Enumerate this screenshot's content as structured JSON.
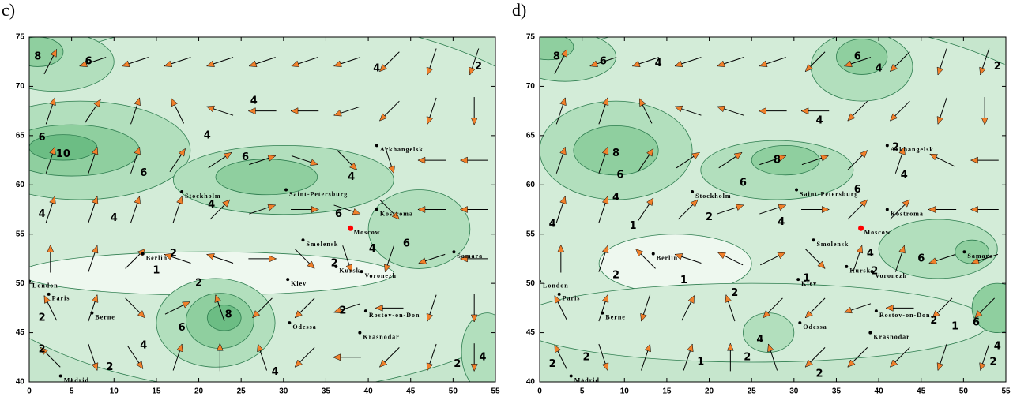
{
  "level_colors": [
    {
      "level": 0,
      "color": "#eef8ef"
    },
    {
      "level": 1,
      "color": "#f6fbf6"
    },
    {
      "level": 2,
      "color": "#d3ecd8"
    },
    {
      "level": 4,
      "color": "#b2dfbd"
    },
    {
      "level": 6,
      "color": "#8fcf9f"
    },
    {
      "level": 8,
      "color": "#6cbd84"
    },
    {
      "level": 10,
      "color": "#4aa86a"
    }
  ],
  "cities": [
    {
      "name": "Arkhangelsk",
      "lon": 41,
      "lat": 64,
      "color": "#000000"
    },
    {
      "name": "Stockholm",
      "lon": 18,
      "lat": 59.3,
      "color": "#000000"
    },
    {
      "name": "Saint-Petersburg",
      "lon": 30.3,
      "lat": 59.5,
      "color": "#000000"
    },
    {
      "name": "Kostroma",
      "lon": 41,
      "lat": 57.5,
      "color": "#000000"
    },
    {
      "name": "Moscow",
      "lon": 37.9,
      "lat": 55.6,
      "color": "#ff0000"
    },
    {
      "name": "Smolensk",
      "lon": 32.3,
      "lat": 54.4,
      "color": "#000000"
    },
    {
      "name": "Berlin",
      "lon": 13.4,
      "lat": 53,
      "color": "#000000"
    },
    {
      "name": "Kursk",
      "lon": 36.2,
      "lat": 51.7,
      "color": "#000000"
    },
    {
      "name": "Voronezh",
      "lon": 39.2,
      "lat": 51.2,
      "color": "#000000"
    },
    {
      "name": "Kiev",
      "lon": 30.5,
      "lat": 50.4,
      "color": "#000000"
    },
    {
      "name": "London",
      "lon": 0,
      "lat": 50.2,
      "color": "#000000"
    },
    {
      "name": "Paris",
      "lon": 2.3,
      "lat": 48.9,
      "color": "#000000"
    },
    {
      "name": "Berne",
      "lon": 7.4,
      "lat": 47,
      "color": "#000000"
    },
    {
      "name": "Odessa",
      "lon": 30.7,
      "lat": 46,
      "color": "#000000"
    },
    {
      "name": "Rostov-on-Don",
      "lon": 39.7,
      "lat": 47.2,
      "color": "#000000"
    },
    {
      "name": "Krasnodar",
      "lon": 39,
      "lat": 45,
      "color": "#000000"
    },
    {
      "name": "Madrid",
      "lon": 3.7,
      "lat": 40.6,
      "color": "#000000"
    },
    {
      "name": "Samara",
      "lon": 50.1,
      "lat": 53.2,
      "color": "#000000"
    }
  ],
  "panels": [
    {
      "label": "c)",
      "xlim": [
        0,
        55
      ],
      "ylim": [
        40,
        75
      ],
      "xticks": [
        0,
        5,
        10,
        15,
        20,
        25,
        30,
        35,
        40,
        45,
        50,
        55
      ],
      "yticks": [
        40,
        45,
        50,
        55,
        60,
        65,
        70,
        75
      ],
      "shading": [
        {
          "lon": 28,
          "lat": 58,
          "rx": 40,
          "ry": 19,
          "level": 2
        },
        {
          "lon": 6,
          "lat": 63.5,
          "rx": 13,
          "ry": 5,
          "level": 4
        },
        {
          "lon": 5,
          "lat": 63.5,
          "rx": 8,
          "ry": 2.6,
          "level": 6
        },
        {
          "lon": 4,
          "lat": 63.8,
          "rx": 4,
          "ry": 1.3,
          "level": 8
        },
        {
          "lon": 30,
          "lat": 60.5,
          "rx": 13,
          "ry": 3.5,
          "level": 4
        },
        {
          "lon": 28,
          "lat": 60.8,
          "rx": 6,
          "ry": 1.8,
          "level": 6
        },
        {
          "lon": 3,
          "lat": 72.5,
          "rx": 7,
          "ry": 3,
          "level": 4
        },
        {
          "lon": 1,
          "lat": 73.5,
          "rx": 3,
          "ry": 1.5,
          "level": 6
        },
        {
          "lon": 46,
          "lat": 55.5,
          "rx": 6,
          "ry": 4,
          "level": 4
        },
        {
          "lon": 21,
          "lat": 51,
          "rx": 22,
          "ry": 2.2,
          "level": 0
        },
        {
          "lon": 22,
          "lat": 46,
          "rx": 7,
          "ry": 4.5,
          "level": 4
        },
        {
          "lon": 22.5,
          "lat": 46.2,
          "rx": 4,
          "ry": 2.8,
          "level": 6
        },
        {
          "lon": 23,
          "lat": 46.5,
          "rx": 2,
          "ry": 1.3,
          "level": 8
        },
        {
          "lon": 54,
          "lat": 43,
          "rx": 3,
          "ry": 4,
          "level": 4
        }
      ],
      "contour_labels": [
        {
          "value": 8,
          "lon": 1,
          "lat": 73
        },
        {
          "value": 6,
          "lon": 7,
          "lat": 72.5
        },
        {
          "value": 4,
          "lon": 41,
          "lat": 71.8
        },
        {
          "value": 2,
          "lon": 53,
          "lat": 72
        },
        {
          "value": 10,
          "lon": 4,
          "lat": 63.1
        },
        {
          "value": 6,
          "lon": 1.5,
          "lat": 64.8
        },
        {
          "value": 6,
          "lon": 13.5,
          "lat": 61.2
        },
        {
          "value": 4,
          "lon": 21,
          "lat": 65
        },
        {
          "value": 6,
          "lon": 25.5,
          "lat": 62.8
        },
        {
          "value": 4,
          "lon": 38,
          "lat": 60.8
        },
        {
          "value": 6,
          "lon": 36.5,
          "lat": 57
        },
        {
          "value": 4,
          "lon": 21.5,
          "lat": 58
        },
        {
          "value": 4,
          "lon": 10,
          "lat": 56.6
        },
        {
          "value": 4,
          "lon": 1.5,
          "lat": 57
        },
        {
          "value": 4,
          "lon": 40.5,
          "lat": 53.5
        },
        {
          "value": 6,
          "lon": 44.5,
          "lat": 54
        },
        {
          "value": 4,
          "lon": 26.5,
          "lat": 68.5
        },
        {
          "value": 2,
          "lon": 17,
          "lat": 53
        },
        {
          "value": 1,
          "lon": 15,
          "lat": 51.3
        },
        {
          "value": 2,
          "lon": 36,
          "lat": 52
        },
        {
          "value": 2,
          "lon": 20,
          "lat": 50
        },
        {
          "value": 6,
          "lon": 18,
          "lat": 45.5
        },
        {
          "value": 8,
          "lon": 23.5,
          "lat": 46.8
        },
        {
          "value": 2,
          "lon": 37,
          "lat": 47.2
        },
        {
          "value": 2,
          "lon": 1.5,
          "lat": 46.5
        },
        {
          "value": 2,
          "lon": 1.5,
          "lat": 43.3
        },
        {
          "value": 4,
          "lon": 13.5,
          "lat": 43.7
        },
        {
          "value": 2,
          "lon": 9.5,
          "lat": 41.5
        },
        {
          "value": 4,
          "lon": 29,
          "lat": 41
        },
        {
          "value": 2,
          "lon": 50.5,
          "lat": 41.8
        },
        {
          "value": 4,
          "lon": 53.5,
          "lat": 42.5
        }
      ],
      "wind": {
        "lons": [
          2.5,
          7.5,
          12.5,
          17.5,
          22.5,
          27.5,
          32.5,
          37.5,
          42.5,
          47.5,
          52.5
        ],
        "lats": [
          72.5,
          67.5,
          62.5,
          57.5,
          52.5,
          47.5,
          42.5
        ],
        "u": [
          [
            1,
            -3,
            -3,
            -3,
            -3,
            -3,
            -3,
            -3,
            -2,
            -1,
            -1
          ],
          [
            1,
            2,
            1,
            -1,
            -3,
            -3,
            -3,
            -3,
            -2,
            -1,
            0
          ],
          [
            1,
            1,
            1,
            2,
            3,
            3,
            3,
            2,
            1,
            -3,
            -3
          ],
          [
            1,
            1,
            1,
            1,
            2,
            3,
            3,
            3,
            2,
            -3,
            -3
          ],
          [
            0,
            1,
            2,
            -3,
            -3,
            3,
            2,
            1,
            -1,
            -3,
            -3
          ],
          [
            -1,
            1,
            2,
            2,
            -1,
            -2,
            -2,
            -3,
            -3,
            -1,
            0
          ],
          [
            -2,
            1,
            2,
            1,
            0,
            -1,
            -2,
            -3,
            -2,
            -1,
            0
          ]
        ],
        "v": [
          [
            2,
            -1,
            -1,
            -1,
            -1,
            -1,
            -1,
            -1,
            -2,
            -3,
            -3
          ],
          [
            3,
            3,
            3,
            2,
            1,
            0,
            0,
            -1,
            -2,
            -3,
            -3
          ],
          [
            3,
            3,
            3,
            3,
            2,
            1,
            -1,
            -2,
            -3,
            0,
            0
          ],
          [
            3,
            3,
            3,
            3,
            2,
            1,
            0,
            -1,
            -2,
            0,
            0
          ],
          [
            3,
            3,
            2,
            1,
            1,
            0,
            -2,
            -3,
            -3,
            -1,
            0
          ],
          [
            2,
            3,
            -2,
            1,
            3,
            -2,
            -2,
            -1,
            0,
            -3,
            -3
          ],
          [
            2,
            -3,
            -3,
            3,
            3,
            3,
            -2,
            0,
            -2,
            -3,
            -3
          ]
        ]
      }
    },
    {
      "label": "d)",
      "xlim": [
        0,
        55
      ],
      "ylim": [
        40,
        75
      ],
      "xticks": [
        0,
        5,
        10,
        15,
        20,
        25,
        30,
        35,
        40,
        45,
        50,
        55
      ],
      "yticks": [
        40,
        45,
        50,
        55,
        60,
        65,
        70,
        75
      ],
      "shading": [
        {
          "lon": 27,
          "lat": 60,
          "rx": 40,
          "ry": 17,
          "level": 2
        },
        {
          "lon": 9,
          "lat": 63.5,
          "rx": 9,
          "ry": 5,
          "level": 4
        },
        {
          "lon": 9,
          "lat": 63.5,
          "rx": 5,
          "ry": 2.5,
          "level": 6
        },
        {
          "lon": 28,
          "lat": 61.5,
          "rx": 9,
          "ry": 3,
          "level": 4
        },
        {
          "lon": 29,
          "lat": 62.5,
          "rx": 4,
          "ry": 1.5,
          "level": 6
        },
        {
          "lon": 38,
          "lat": 72,
          "rx": 6,
          "ry": 3.5,
          "level": 4
        },
        {
          "lon": 38,
          "lat": 73,
          "rx": 3,
          "ry": 1.8,
          "level": 6
        },
        {
          "lon": 3,
          "lat": 73,
          "rx": 6,
          "ry": 2.5,
          "level": 4
        },
        {
          "lon": 1,
          "lat": 74,
          "rx": 3,
          "ry": 1.3,
          "level": 6
        },
        {
          "lon": 16,
          "lat": 52,
          "rx": 9,
          "ry": 3,
          "level": 0
        },
        {
          "lon": 25,
          "lat": 46,
          "rx": 28,
          "ry": 4,
          "level": 2
        },
        {
          "lon": 27,
          "lat": 45,
          "rx": 3,
          "ry": 2,
          "level": 4
        },
        {
          "lon": 47,
          "lat": 53.5,
          "rx": 7,
          "ry": 3,
          "level": 4
        },
        {
          "lon": 51,
          "lat": 53.2,
          "rx": 2,
          "ry": 1.2,
          "level": 6
        },
        {
          "lon": 54,
          "lat": 47.5,
          "rx": 3,
          "ry": 2.5,
          "level": 6
        }
      ],
      "contour_labels": [
        {
          "value": 8,
          "lon": 2,
          "lat": 73
        },
        {
          "value": 6,
          "lon": 7.5,
          "lat": 72.5
        },
        {
          "value": 4,
          "lon": 14,
          "lat": 72.3
        },
        {
          "value": 6,
          "lon": 37.5,
          "lat": 73
        },
        {
          "value": 4,
          "lon": 40,
          "lat": 71.8
        },
        {
          "value": 2,
          "lon": 54,
          "lat": 72
        },
        {
          "value": 8,
          "lon": 9,
          "lat": 63.2
        },
        {
          "value": 6,
          "lon": 9.5,
          "lat": 61
        },
        {
          "value": 4,
          "lon": 9,
          "lat": 58.7
        },
        {
          "value": 6,
          "lon": 24,
          "lat": 60.2
        },
        {
          "value": 8,
          "lon": 28,
          "lat": 62.5
        },
        {
          "value": 2,
          "lon": 42,
          "lat": 63.8
        },
        {
          "value": 4,
          "lon": 43,
          "lat": 61
        },
        {
          "value": 6,
          "lon": 37.5,
          "lat": 59.5
        },
        {
          "value": 4,
          "lon": 33,
          "lat": 66.5
        },
        {
          "value": 2,
          "lon": 20,
          "lat": 56.7
        },
        {
          "value": 4,
          "lon": 28.5,
          "lat": 56.2
        },
        {
          "value": 1,
          "lon": 11,
          "lat": 55.8
        },
        {
          "value": 4,
          "lon": 1.5,
          "lat": 56
        },
        {
          "value": 2,
          "lon": 9,
          "lat": 50.8
        },
        {
          "value": 1,
          "lon": 17,
          "lat": 50.3
        },
        {
          "value": 1,
          "lon": 31.5,
          "lat": 50.5
        },
        {
          "value": 2,
          "lon": 23,
          "lat": 49
        },
        {
          "value": 2,
          "lon": 39.5,
          "lat": 51.2
        },
        {
          "value": 4,
          "lon": 39,
          "lat": 53
        },
        {
          "value": 6,
          "lon": 45,
          "lat": 52.5
        },
        {
          "value": 6,
          "lon": 51.5,
          "lat": 46
        },
        {
          "value": 4,
          "lon": 26,
          "lat": 44.3
        },
        {
          "value": 2,
          "lon": 24.5,
          "lat": 42.5
        },
        {
          "value": 2,
          "lon": 33,
          "lat": 40.8
        },
        {
          "value": 1,
          "lon": 19,
          "lat": 42
        },
        {
          "value": 2,
          "lon": 46.5,
          "lat": 46.2
        },
        {
          "value": 1,
          "lon": 49,
          "lat": 45.6
        },
        {
          "value": 4,
          "lon": 54,
          "lat": 43.6
        },
        {
          "value": 2,
          "lon": 53.5,
          "lat": 42
        },
        {
          "value": 2,
          "lon": 1.5,
          "lat": 41.8
        },
        {
          "value": 2,
          "lon": 5.5,
          "lat": 42.5
        }
      ],
      "wind": {
        "lons": [
          2.5,
          7.5,
          12.5,
          17.5,
          22.5,
          27.5,
          32.5,
          37.5,
          42.5,
          47.5,
          52.5
        ],
        "lats": [
          72.5,
          67.5,
          62.5,
          57.5,
          52.5,
          47.5,
          42.5
        ],
        "u": [
          [
            1,
            -3,
            -3,
            -3,
            -3,
            -3,
            -2,
            -3,
            -2,
            -1,
            -1
          ],
          [
            1,
            1,
            -1,
            -3,
            -3,
            -3,
            -3,
            -2,
            -2,
            -1,
            0
          ],
          [
            1,
            1,
            2,
            3,
            3,
            3,
            3,
            2,
            1,
            -2,
            -3
          ],
          [
            1,
            1,
            2,
            2,
            3,
            3,
            3,
            2,
            2,
            -3,
            -3
          ],
          [
            0,
            1,
            -2,
            -3,
            -2,
            2,
            2,
            1,
            1,
            -3,
            -3
          ],
          [
            -1,
            1,
            -1,
            1,
            -1,
            -2,
            -2,
            -3,
            -3,
            -2,
            -2
          ],
          [
            -1,
            1,
            1,
            1,
            0,
            -1,
            -2,
            -2,
            -2,
            -1,
            -1
          ]
        ],
        "v": [
          [
            2,
            -1,
            -1,
            -1,
            -1,
            -1,
            -2,
            -1,
            -2,
            -3,
            -3
          ],
          [
            3,
            3,
            2,
            1,
            1,
            0,
            0,
            -2,
            -2,
            -3,
            -3
          ],
          [
            3,
            3,
            3,
            2,
            2,
            1,
            1,
            2,
            3,
            1,
            0
          ],
          [
            3,
            3,
            3,
            2,
            1,
            1,
            0,
            2,
            2,
            0,
            0
          ],
          [
            3,
            3,
            2,
            1,
            1,
            1,
            -2,
            3,
            3,
            -1,
            -1
          ],
          [
            2,
            3,
            -3,
            2,
            3,
            -2,
            -2,
            -1,
            0,
            -2,
            -2
          ],
          [
            2,
            -3,
            3,
            3,
            3,
            3,
            -2,
            -2,
            -2,
            -3,
            -3
          ]
        ]
      }
    }
  ]
}
